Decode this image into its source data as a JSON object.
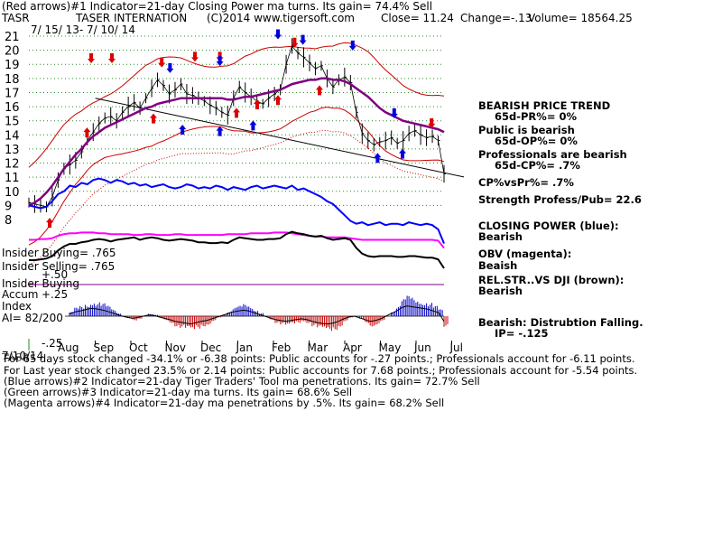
{
  "header": {
    "line1": "(Red arrows)#1 Indicator=21-day Closing Power ma turns. Its gain= 74.4% Sell",
    "ticker": "TASR",
    "name": "TASER INTERNATION",
    "copyright": "(C)2014 www.tigersoft.com",
    "close": "Close=  11.24",
    "change": "Change=-.13",
    "volume": "Volume= 18564.25",
    "date_range": "7/ 15/ 13-  7/ 10/ 14"
  },
  "left_labels": {
    "insider_buying": "Insider Buying= .765",
    "insider_selling": "Insider Selling= .765",
    "accum_title_1": "Insider Buying",
    "accum_title_2": "Accum",
    "accum_title_3": "Index",
    "ai": "AI= 82/200",
    "plus_25": "+.25",
    "plus_50": "+.50",
    "minus_25": "-.25",
    "date_stamp": "7/10/14",
    "stamp2": "TASR"
  },
  "right_panel": {
    "trend_title": "BEARISH PRICE TREND",
    "trend_value": "65d-PR%= 0%",
    "public_title": "Public is bearish",
    "public_value": "65d-OP%= 0%",
    "pros_title": "Professionals are bearish",
    "pros_value": "65d-CP%= .7%",
    "cpvspr": "CP%vsPr%=  .7%",
    "strength": "Strength Profess/Pub= 22.6",
    "closing_power_title": "CLOSING POWER (blue):",
    "closing_power_value": "Bearish",
    "obv_title": "OBV (magenta):",
    "obv_value": "Beaish",
    "relstr_title": "REL.STR..VS DJI (brown):",
    "relstr_value": "Bearish",
    "dist_title": "Bearish: Distrubtion Falling.",
    "dist_value": "IP= -.125"
  },
  "footer": {
    "line1": "For 65 days stock changed -34.1% or -6.38 points:  Public accounts for -.27 points.;  Professionals account for -6.11 points.",
    "line2": "For Last year stock changed  23.5% or  2.14 points:  Public accounts for  7.68 points.;  Professionals account for -5.54 points.",
    "line3": "(Blue arrows)#2 Indicator=21-day Tiger Traders' Tool ma penetrations. Its gain= 72.7% Sell",
    "line4": "(Green arrows)#3 Indicator=21-day ma turns. Its gain= 68.6% Sell",
    "line5": "(Magenta arrows)#4 Indicator=21-day ma penetrations by .5%. Its gain= 68.2% Sell"
  },
  "chart_data": {
    "type": "line",
    "y_ticks": [
      "21",
      "20",
      "19",
      "18",
      "17",
      "16",
      "15",
      "14",
      "13",
      "12",
      "11",
      "10",
      "9",
      "8"
    ],
    "x_ticks": [
      "Aug",
      "Sep",
      "Oct",
      "Nov",
      "Dec",
      "Jan",
      "Feb",
      "Mar",
      "Apr",
      "May",
      "Jun",
      "Jul"
    ],
    "ylim": [
      7.5,
      21.5
    ],
    "grid": true,
    "price_close": [
      9.2,
      9.1,
      9.0,
      8.9,
      9.6,
      10.8,
      11.6,
      11.9,
      12.2,
      12.8,
      13.6,
      14.2,
      14.8,
      15.2,
      15.3,
      15.0,
      15.6,
      16.0,
      16.3,
      15.9,
      16.6,
      17.3,
      17.9,
      17.5,
      16.9,
      17.2,
      17.6,
      16.9,
      16.8,
      16.6,
      16.4,
      16.1,
      15.9,
      15.6,
      15.4,
      16.6,
      17.4,
      17.0,
      16.7,
      16.4,
      16.2,
      16.6,
      16.9,
      17.2,
      19.0,
      20.3,
      19.8,
      19.5,
      19.1,
      18.7,
      18.9,
      18.0,
      17.4,
      17.9,
      18.1,
      17.7,
      15.6,
      14.1,
      13.6,
      13.3,
      13.5,
      13.6,
      13.8,
      13.4,
      13.6,
      14.1,
      14.3,
      14.0,
      13.8,
      13.9,
      13.6,
      11.24
    ],
    "closing_power": [
      9.0,
      8.9,
      8.8,
      8.9,
      9.3,
      9.8,
      10.0,
      10.4,
      10.3,
      10.6,
      10.5,
      10.8,
      10.9,
      10.8,
      10.6,
      10.8,
      10.7,
      10.5,
      10.6,
      10.4,
      10.5,
      10.3,
      10.4,
      10.5,
      10.3,
      10.2,
      10.3,
      10.5,
      10.4,
      10.2,
      10.3,
      10.2,
      10.4,
      10.3,
      10.1,
      10.3,
      10.2,
      10.1,
      10.3,
      10.4,
      10.2,
      10.3,
      10.4,
      10.3,
      10.2,
      10.4,
      10.1,
      10.2,
      10.0,
      9.8,
      9.6,
      9.3,
      9.1,
      8.7,
      8.3,
      7.9,
      7.7,
      7.8,
      7.6,
      7.7,
      7.8,
      7.6,
      7.7,
      7.7,
      7.6,
      7.8,
      7.7,
      7.6,
      7.7,
      7.6,
      7.3,
      6.3
    ],
    "ma_purple": [
      9.0,
      9.2,
      9.5,
      9.9,
      10.4,
      11.0,
      11.6,
      12.1,
      12.6,
      13.0,
      13.5,
      13.9,
      14.2,
      14.5,
      14.7,
      14.9,
      15.1,
      15.3,
      15.5,
      15.7,
      15.9,
      16.0,
      16.2,
      16.3,
      16.4,
      16.5,
      16.6,
      16.6,
      16.6,
      16.6,
      16.6,
      16.6,
      16.6,
      16.6,
      16.5,
      16.5,
      16.6,
      16.7,
      16.7,
      16.8,
      16.9,
      17.0,
      17.1,
      17.2,
      17.4,
      17.6,
      17.7,
      17.8,
      17.9,
      17.9,
      18.0,
      18.0,
      17.9,
      17.9,
      17.8,
      17.6,
      17.3,
      17.0,
      16.7,
      16.3,
      15.9,
      15.6,
      15.4,
      15.2,
      15.0,
      14.9,
      14.8,
      14.7,
      14.6,
      14.5,
      14.4,
      14.2
    ],
    "trendline": [
      [
        0.16,
        16.6
      ],
      [
        1.0,
        11.4
      ]
    ],
    "accum_index": [
      0.05,
      0.1,
      0.12,
      0.15,
      0.18,
      0.17,
      0.15,
      0.12,
      0.08,
      0.04,
      0.0,
      -0.03,
      -0.05,
      -0.03,
      0.0,
      0.03,
      0.02,
      -0.02,
      -0.05,
      -0.08,
      -0.12,
      -0.14,
      -0.16,
      -0.18,
      -0.15,
      -0.12,
      -0.1,
      -0.06,
      -0.02,
      0.02,
      0.06,
      0.1,
      0.12,
      0.14,
      0.12,
      0.08,
      0.04,
      0.0,
      -0.04,
      -0.08,
      -0.1,
      -0.12,
      -0.1,
      -0.08,
      -0.06,
      -0.08,
      -0.12,
      -0.15,
      -0.17,
      -0.18,
      -0.16,
      -0.12,
      -0.06,
      -0.02,
      0.0,
      -0.04,
      -0.08,
      -0.12,
      -0.1,
      -0.06,
      0.0,
      0.06,
      0.12,
      0.2,
      0.24,
      0.22,
      0.2,
      0.18,
      0.16,
      0.12,
      0.08,
      -0.125
    ],
    "obv_magenta": [
      0.55,
      0.55,
      0.56,
      0.56,
      0.57,
      0.6,
      0.62,
      0.63,
      0.63,
      0.64,
      0.64,
      0.64,
      0.63,
      0.63,
      0.62,
      0.62,
      0.62,
      0.62,
      0.61,
      0.61,
      0.62,
      0.62,
      0.61,
      0.61,
      0.61,
      0.62,
      0.62,
      0.61,
      0.61,
      0.61,
      0.61,
      0.61,
      0.61,
      0.61,
      0.62,
      0.62,
      0.62,
      0.62,
      0.63,
      0.63,
      0.63,
      0.63,
      0.64,
      0.64,
      0.64,
      0.63,
      0.62,
      0.61,
      0.6,
      0.59,
      0.59,
      0.58,
      0.58,
      0.58,
      0.58,
      0.57,
      0.56,
      0.55,
      0.55,
      0.55,
      0.55,
      0.55,
      0.55,
      0.55,
      0.55,
      0.55,
      0.55,
      0.55,
      0.55,
      0.55,
      0.54,
      0.45
    ],
    "relstr_black": [
      0.3,
      0.3,
      0.31,
      0.32,
      0.35,
      0.42,
      0.47,
      0.5,
      0.5,
      0.52,
      0.53,
      0.55,
      0.56,
      0.55,
      0.53,
      0.55,
      0.56,
      0.57,
      0.58,
      0.55,
      0.57,
      0.58,
      0.57,
      0.55,
      0.54,
      0.55,
      0.56,
      0.55,
      0.54,
      0.52,
      0.52,
      0.51,
      0.51,
      0.52,
      0.51,
      0.55,
      0.58,
      0.57,
      0.56,
      0.55,
      0.55,
      0.56,
      0.56,
      0.57,
      0.62,
      0.65,
      0.63,
      0.62,
      0.6,
      0.59,
      0.6,
      0.57,
      0.55,
      0.56,
      0.57,
      0.55,
      0.45,
      0.38,
      0.35,
      0.34,
      0.35,
      0.35,
      0.35,
      0.34,
      0.34,
      0.35,
      0.35,
      0.34,
      0.33,
      0.33,
      0.31,
      0.2
    ],
    "sell_arrows_red": [
      [
        0.15,
        19.4
      ],
      [
        0.2,
        19.4
      ],
      [
        0.32,
        19.1
      ],
      [
        0.4,
        19.5
      ],
      [
        0.46,
        19.5
      ],
      [
        0.64,
        20.5
      ],
      [
        0.97,
        14.8
      ]
    ],
    "buy_arrows_red": [
      [
        0.05,
        7.8
      ],
      [
        0.14,
        14.2
      ],
      [
        0.3,
        15.2
      ],
      [
        0.5,
        15.6
      ],
      [
        0.55,
        16.2
      ],
      [
        0.6,
        16.5
      ],
      [
        0.7,
        17.2
      ]
    ],
    "sell_arrows_blue": [
      [
        0.34,
        18.7
      ],
      [
        0.46,
        19.2
      ],
      [
        0.6,
        21.1
      ],
      [
        0.66,
        20.7
      ],
      [
        0.78,
        20.3
      ],
      [
        0.88,
        15.5
      ]
    ],
    "buy_arrows_blue": [
      [
        0.37,
        14.4
      ],
      [
        0.46,
        14.3
      ],
      [
        0.54,
        14.7
      ],
      [
        0.84,
        12.4
      ],
      [
        0.9,
        12.7
      ]
    ]
  }
}
